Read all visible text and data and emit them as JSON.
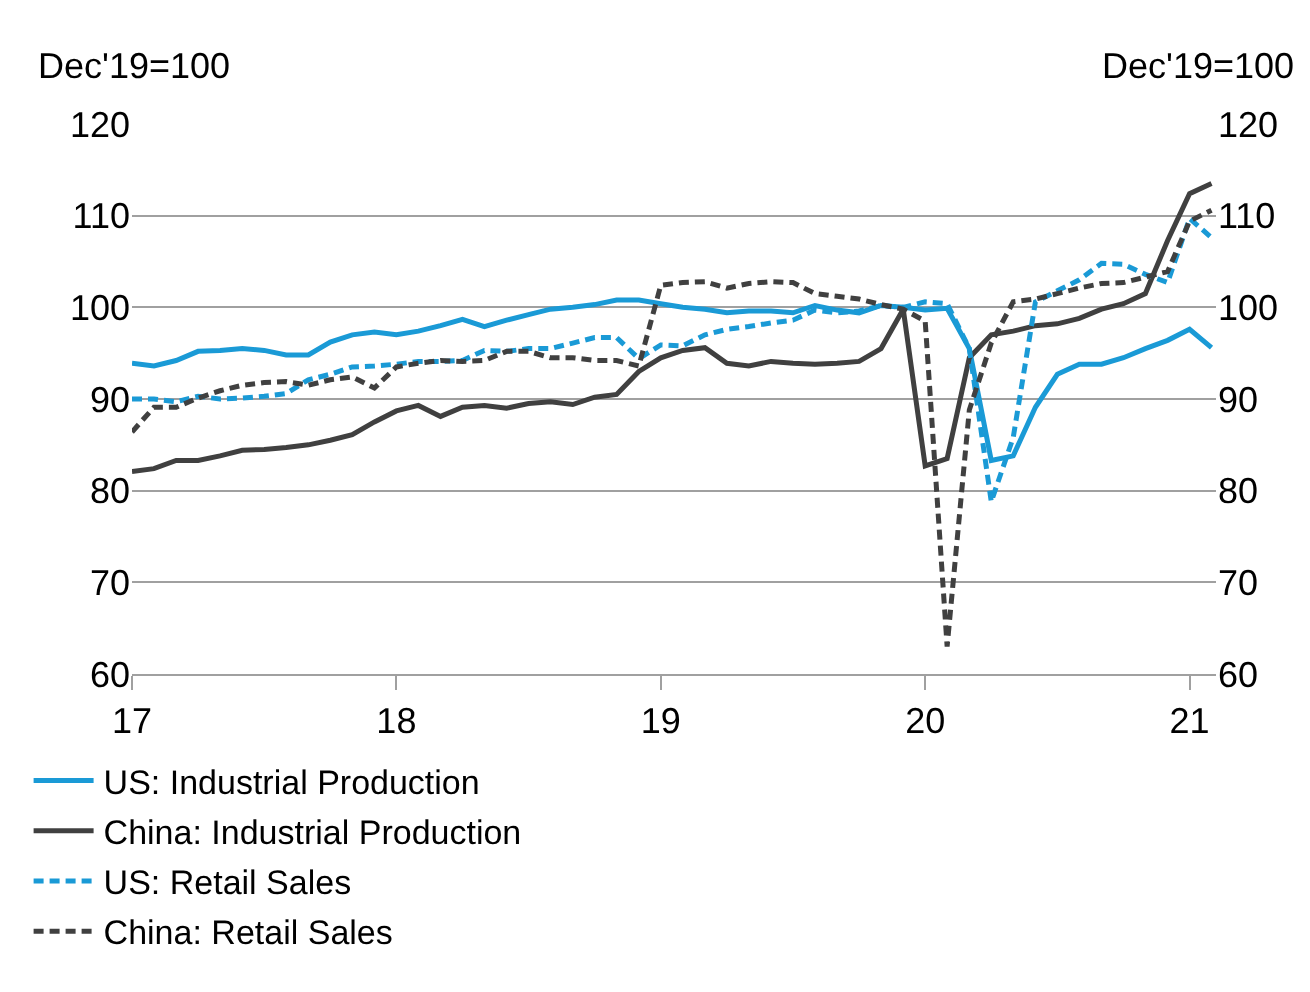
{
  "chart_data": {
    "type": "line",
    "ylabel": "Dec'19=100",
    "y2label": "Dec'19=100",
    "x": [
      17.0,
      17.083,
      17.167,
      17.25,
      17.333,
      17.417,
      17.5,
      17.583,
      17.667,
      17.75,
      17.833,
      17.917,
      18.0,
      18.083,
      18.167,
      18.25,
      18.333,
      18.417,
      18.5,
      18.583,
      18.667,
      18.75,
      18.833,
      18.917,
      19.0,
      19.083,
      19.167,
      19.25,
      19.333,
      19.417,
      19.5,
      19.583,
      19.667,
      19.75,
      19.833,
      19.917,
      20.0,
      20.083,
      20.167,
      20.25,
      20.333,
      20.417,
      20.5,
      20.583,
      20.667,
      20.75,
      20.833,
      20.917,
      21.0,
      21.083
    ],
    "series": [
      {
        "name": "US: Industrial Production",
        "color": "#1a9ad6",
        "line_style": "solid",
        "values": [
          93.9,
          93.6,
          94.2,
          95.2,
          95.3,
          95.5,
          95.3,
          94.8,
          94.8,
          96.2,
          97.0,
          97.3,
          97.0,
          97.4,
          98.0,
          98.7,
          97.9,
          98.6,
          99.2,
          99.8,
          100.0,
          100.3,
          100.8,
          100.8,
          100.4,
          100.0,
          99.8,
          99.4,
          99.6,
          99.6,
          99.4,
          100.2,
          99.7,
          99.4,
          100.2,
          100.0,
          99.7,
          99.9,
          95.5,
          83.3,
          83.8,
          89.1,
          92.7,
          93.8,
          93.8,
          94.5,
          95.5,
          96.4,
          97.6,
          95.6
        ]
      },
      {
        "name": "China: Industrial Production",
        "color": "#404040",
        "line_style": "solid",
        "values": [
          82.1,
          82.4,
          83.3,
          83.3,
          83.8,
          84.4,
          84.5,
          84.7,
          85.0,
          85.5,
          86.1,
          87.5,
          88.7,
          89.3,
          88.1,
          89.1,
          89.3,
          89.0,
          89.5,
          89.7,
          89.4,
          90.2,
          90.5,
          93.0,
          94.5,
          95.3,
          95.6,
          93.9,
          93.6,
          94.1,
          93.9,
          93.8,
          93.9,
          94.1,
          95.5,
          99.8,
          82.7,
          83.5,
          94.5,
          97.0,
          97.4,
          98.0,
          98.2,
          98.8,
          99.8,
          100.4,
          101.5,
          107.3,
          112.4,
          113.5
        ]
      },
      {
        "name": "US: Retail Sales",
        "color": "#1a9ad6",
        "line_style": "dashed",
        "values": [
          90.0,
          90.0,
          89.7,
          90.3,
          90.0,
          90.1,
          90.3,
          90.6,
          92.1,
          92.7,
          93.5,
          93.6,
          93.8,
          94.1,
          94.1,
          94.2,
          95.3,
          95.2,
          95.5,
          95.5,
          96.1,
          96.7,
          96.7,
          94.4,
          95.9,
          95.8,
          97.0,
          97.6,
          97.9,
          98.3,
          98.6,
          99.7,
          99.4,
          99.6,
          100.2,
          100.0,
          100.6,
          100.4,
          95.5,
          78.8,
          85.8,
          100.6,
          101.8,
          103.0,
          104.8,
          104.7,
          103.6,
          102.7,
          109.7,
          107.6
        ]
      },
      {
        "name": "China: Retail Sales",
        "color": "#404040",
        "line_style": "dashed",
        "values": [
          86.4,
          89.1,
          89.1,
          90.1,
          90.9,
          91.5,
          91.8,
          91.9,
          91.5,
          92.1,
          92.4,
          91.2,
          93.5,
          93.9,
          94.2,
          94.1,
          94.2,
          95.2,
          95.2,
          94.5,
          94.5,
          94.2,
          94.2,
          93.6,
          102.4,
          102.7,
          102.8,
          102.1,
          102.6,
          102.8,
          102.7,
          101.5,
          101.2,
          100.9,
          100.3,
          99.8,
          98.5,
          63.0,
          88.8,
          96.1,
          100.6,
          100.9,
          101.5,
          102.1,
          102.6,
          102.7,
          103.3,
          103.9,
          109.4,
          110.6
        ]
      }
    ],
    "xlim": [
      17,
      21.1
    ],
    "xticks": [
      {
        "value": 17,
        "label": "17"
      },
      {
        "value": 18,
        "label": "18"
      },
      {
        "value": 19,
        "label": "19"
      },
      {
        "value": 20,
        "label": "20"
      },
      {
        "value": 21,
        "label": "21"
      }
    ],
    "ylim": [
      60,
      120
    ],
    "yticks": [
      60,
      70,
      80,
      90,
      100,
      110,
      120
    ],
    "y2lim": [
      60,
      120
    ],
    "y2ticks": [
      60,
      70,
      80,
      90,
      100,
      110,
      120
    ],
    "grid": "y",
    "legend": "bottom",
    "marker": "none"
  }
}
